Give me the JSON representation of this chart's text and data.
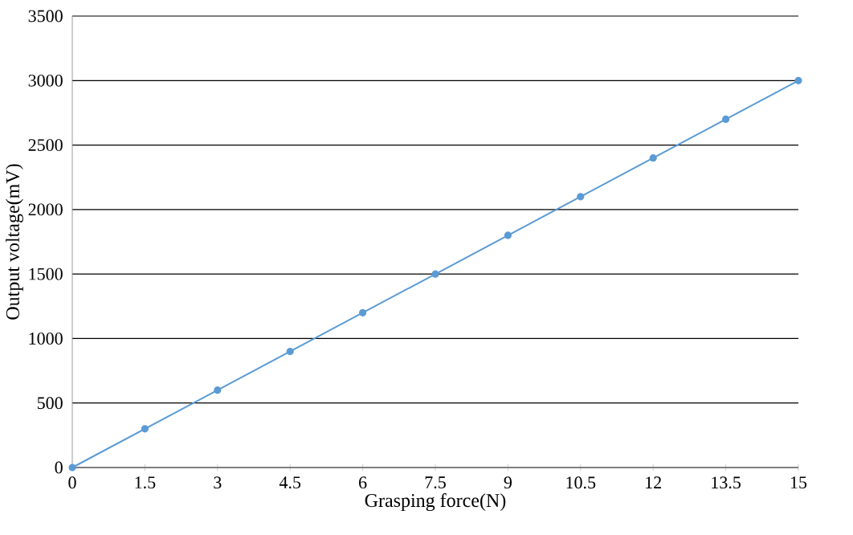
{
  "chart_data": {
    "type": "line",
    "xlabel": "Grasping force(N)",
    "ylabel": "Output voltage(mV)",
    "x": [
      0,
      1.5,
      3,
      4.5,
      6,
      7.5,
      9,
      10.5,
      12,
      13.5,
      15
    ],
    "series": [
      {
        "color": "#5b9bd5",
        "values": [
          0,
          300,
          600,
          900,
          1200,
          1500,
          1800,
          2100,
          2400,
          2700,
          3000
        ]
      }
    ],
    "xlim": [
      0,
      15
    ],
    "ylim": [
      0,
      3500
    ],
    "xticks": [
      0,
      1.5,
      3,
      4.5,
      6,
      7.5,
      9,
      10.5,
      12,
      13.5,
      15
    ],
    "yticks": [
      0,
      500,
      1000,
      1500,
      2000,
      2500,
      3000,
      3500
    ],
    "grid": "y",
    "marker": "circle",
    "line_style": "solid"
  }
}
